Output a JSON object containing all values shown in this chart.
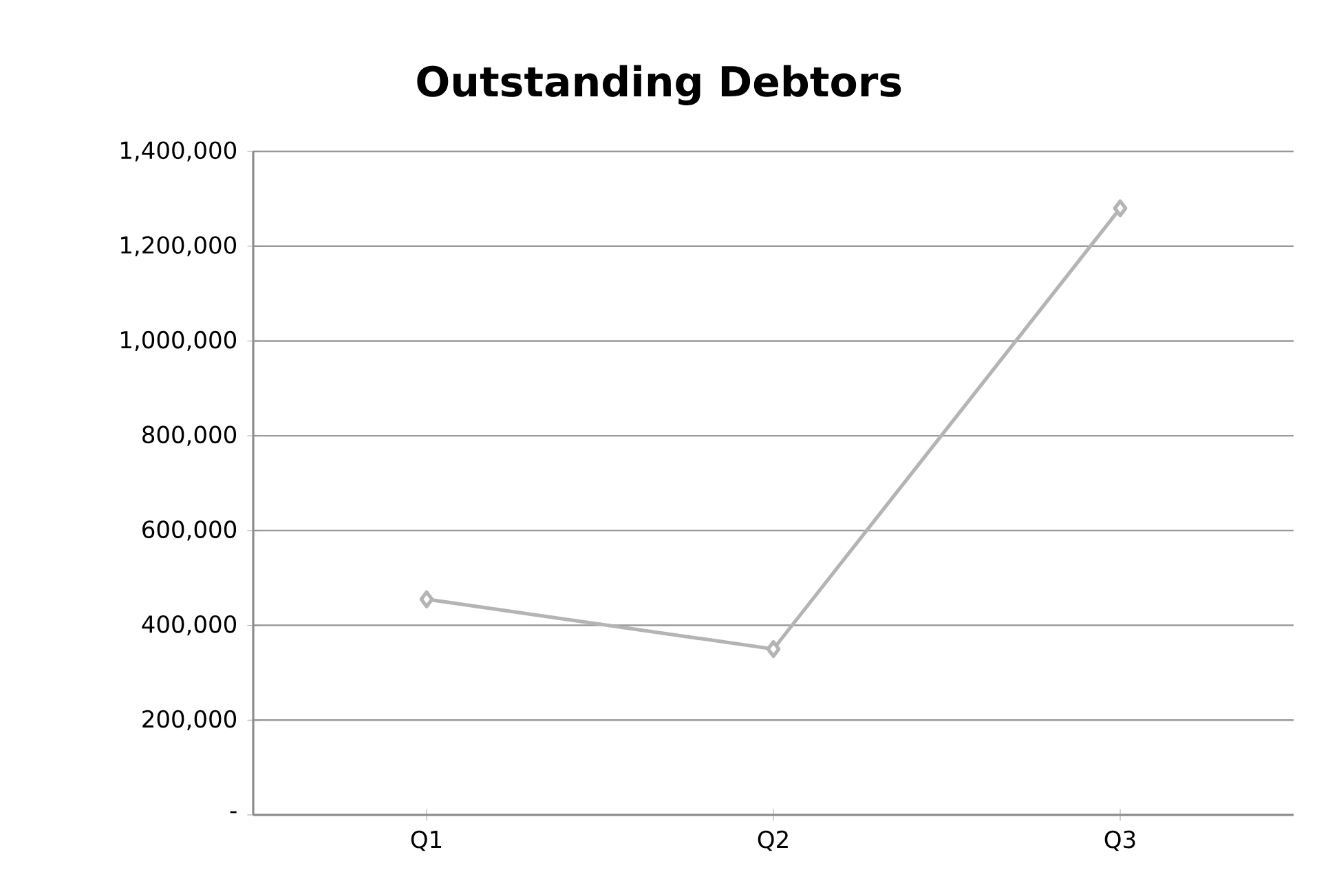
{
  "chart_data": {
    "type": "line",
    "title": "Outstanding Debtors",
    "categories": [
      "Q1",
      "Q2",
      "Q3"
    ],
    "series": [
      {
        "color": "#b4b4b4",
        "values": [
          455000,
          350000,
          1280000
        ]
      }
    ],
    "ylim": [
      0,
      1400000
    ],
    "yticks": [
      {
        "value": 0,
        "label": "-"
      },
      {
        "value": 200000,
        "label": "200,000"
      },
      {
        "value": 400000,
        "label": "400,000"
      },
      {
        "value": 600000,
        "label": "600,000"
      },
      {
        "value": 800000,
        "label": "800,000"
      },
      {
        "value": 1000000,
        "label": "1,000,000"
      },
      {
        "value": 1200000,
        "label": "1,200,000"
      },
      {
        "value": 1400000,
        "label": "1,400,000"
      }
    ],
    "grid": "y",
    "marker": "diamond",
    "line_style": "solid"
  }
}
